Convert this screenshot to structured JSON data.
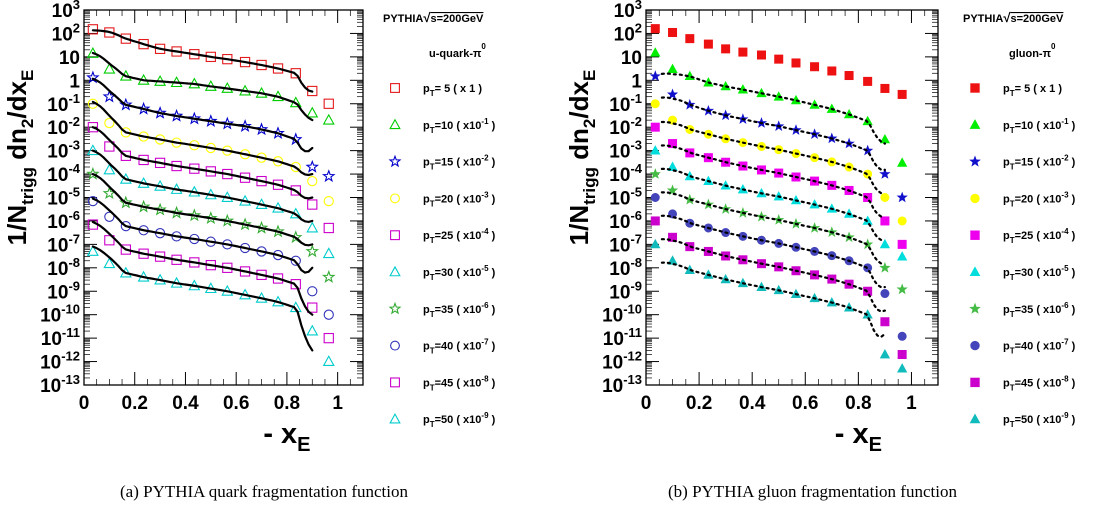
{
  "captions": {
    "a": "(a)  PYTHIA quark fragmentation function",
    "b": "(b)  PYTHIA gluon fragmentation function"
  },
  "panels": {
    "a": {
      "legend_title": "PYTHIA",
      "legend_energy": "s=200GeV",
      "legend_process": "u-quark-π",
      "legend_process_sup": "0"
    },
    "b": {
      "legend_title": "PYTHIA",
      "legend_energy": "s=200GeV",
      "legend_process": "gluon-π",
      "legend_process_sup": "0"
    }
  },
  "chart_data": [
    {
      "type": "scatter",
      "panel": "a",
      "xlabel": "- x_E",
      "ylabel": "1/N_trigg dn_2/dx_E",
      "xlim": [
        0,
        1.1
      ],
      "ylim": [
        1e-13,
        1000
      ],
      "log_y": true,
      "x_ticks": [
        "0",
        "0.2",
        "0.4",
        "0.6",
        "0.8",
        "1"
      ],
      "y_ticks": [
        "10^3",
        "10^2",
        "10",
        "1",
        "10^-1",
        "10^-2",
        "10^-3",
        "10^-4",
        "10^-5",
        "10^-6",
        "10^-7",
        "10^-8",
        "10^-9",
        "10^-10",
        "10^-11",
        "10^-12",
        "10^-13"
      ],
      "x": [
        0.035,
        0.1,
        0.165,
        0.235,
        0.3,
        0.365,
        0.435,
        0.5,
        0.565,
        0.635,
        0.7,
        0.765,
        0.835,
        0.9,
        0.965
      ],
      "marker_fill": "open",
      "legend_position": "right",
      "series": [
        {
          "name": "p_T=5 ( x 1 )",
          "legend": {
            "pt": "5",
            "scale": "( x 1 )"
          },
          "color": "#e41a1c",
          "marker": "square",
          "fit_y0": 130.0,
          "fit_yend": 0.33,
          "values": [
            150.0,
            110.0,
            60.0,
            35.0,
            22.0,
            17.0,
            13.0,
            10.0,
            8.0,
            6.0,
            4.5,
            3.2,
            2.0,
            0.35,
            0.1
          ]
        },
        {
          "name": "p_T=10 ( x10^-1 )",
          "legend": {
            "pt": "10",
            "scale": "( x10^-1 )"
          },
          "color": "#00cc00",
          "marker": "triangle",
          "fit_y0": 15.0,
          "fit_yend": 0.02,
          "values": [
            14.0,
            3.0,
            1.5,
            1.0,
            0.9,
            0.8,
            0.7,
            0.55,
            0.45,
            0.35,
            0.28,
            0.2,
            0.11,
            0.04,
            0.02
          ]
        },
        {
          "name": "p_T=15 ( x10^-2 )",
          "legend": {
            "pt": "15",
            "scale": "( x10^-2 )"
          },
          "color": "#0000cc",
          "marker": "star",
          "fit_y0": 1.1,
          "fit_yend": 0.0013,
          "values": [
            1.3,
            0.2,
            0.09,
            0.06,
            0.04,
            0.03,
            0.023,
            0.018,
            0.014,
            0.011,
            0.008,
            0.0055,
            0.003,
            0.0002,
            8e-05
          ]
        },
        {
          "name": "p_T=20 ( x10^-3 )",
          "legend": {
            "pt": "20",
            "scale": "( x10^-3 )"
          },
          "color": "#ffff00",
          "marker": "circle",
          "fit_y0": 0.13,
          "fit_yend": 0.0001,
          "values": [
            0.1,
            0.015,
            0.006,
            0.004,
            0.003,
            0.0022,
            0.0017,
            0.0013,
            0.001,
            0.0007,
            0.0005,
            0.00035,
            0.0002,
            5e-05,
            7e-06
          ]
        },
        {
          "name": "p_T=25 ( x10^-4 )",
          "legend": {
            "pt": "25",
            "scale": "( x10^-4 )"
          },
          "color": "#cc00cc",
          "marker": "square",
          "fit_y0": 0.01,
          "fit_yend": 1e-05,
          "values": [
            0.01,
            0.0015,
            0.0006,
            0.0004,
            0.0003,
            0.00022,
            0.00017,
            0.00013,
            0.0001,
            7e-05,
            5e-05,
            3.5e-05,
            2e-05,
            5e-06,
            5e-07
          ]
        },
        {
          "name": "p_T=30 ( x10^-5 )",
          "legend": {
            "pt": "30",
            "scale": "( x10^-5 )"
          },
          "color": "#00cccc",
          "marker": "triangle",
          "fit_y0": 0.001,
          "fit_yend": 1e-06,
          "values": [
            0.001,
            0.00015,
            6e-05,
            4e-05,
            3e-05,
            2.2e-05,
            1.7e-05,
            1.3e-05,
            1e-05,
            7e-06,
            5e-06,
            3.5e-06,
            2e-06,
            5e-07,
            4e-08
          ]
        },
        {
          "name": "p_T=35 ( x10^-6 )",
          "legend": {
            "pt": "35",
            "scale": "( x10^-6 )"
          },
          "color": "#33aa33",
          "marker": "star",
          "fit_y0": 0.0001,
          "fit_yend": 1e-07,
          "values": [
            0.0001,
            1.5e-05,
            6e-06,
            4e-06,
            3e-06,
            2.2e-06,
            1.7e-06,
            1.3e-06,
            1e-06,
            7e-07,
            5e-07,
            3.5e-07,
            2e-07,
            5e-08,
            4e-09
          ]
        },
        {
          "name": "p_T=40 ( x10^-7 )",
          "legend": {
            "pt": "40",
            "scale": "( x10^-7 )"
          },
          "color": "#3333bb",
          "marker": "circle",
          "fit_y0": 1e-05,
          "fit_yend": 1e-08,
          "values": [
            7e-06,
            1.5e-06,
            6e-07,
            4e-07,
            3e-07,
            2.2e-07,
            1.7e-07,
            1.3e-07,
            1e-07,
            7e-08,
            5e-08,
            3.5e-08,
            2e-08,
            1e-09,
            1e-10
          ]
        },
        {
          "name": "p_T=45 ( x10^-8 )",
          "legend": {
            "pt": "45",
            "scale": "( x10^-8 )"
          },
          "color": "#cc00cc",
          "marker": "square",
          "fit_y0": 1e-06,
          "fit_yend": 1e-10,
          "values": [
            7e-07,
            1.5e-07,
            6e-08,
            4e-08,
            3e-08,
            2.2e-08,
            1.7e-08,
            1.3e-08,
            1e-08,
            7e-09,
            5e-09,
            3.5e-09,
            2e-09,
            2e-10,
            1e-11
          ]
        },
        {
          "name": "p_T=50 ( x10^-9 )",
          "legend": {
            "pt": "50",
            "scale": "( x10^-9 )"
          },
          "color": "#00cccc",
          "marker": "triangle",
          "fit_y0": 1e-07,
          "fit_yend": 3e-12,
          "values": [
            5e-08,
            1.5e-08,
            6e-09,
            4e-09,
            3e-09,
            2.2e-09,
            1.7e-09,
            1.3e-09,
            1e-09,
            7e-10,
            5e-10,
            3.5e-10,
            2e-10,
            2e-11,
            1e-12
          ]
        }
      ]
    },
    {
      "type": "scatter",
      "panel": "b",
      "xlabel": "- x_E",
      "ylabel": "1/N_trigg dn_2/dx_E",
      "xlim": [
        0,
        1.1
      ],
      "ylim": [
        1e-13,
        1000
      ],
      "log_y": true,
      "x_ticks": [
        "0",
        "0.2",
        "0.4",
        "0.6",
        "0.8",
        "1"
      ],
      "y_ticks": [
        "10^3",
        "10^2",
        "10",
        "1",
        "10^-1",
        "10^-2",
        "10^-3",
        "10^-4",
        "10^-5",
        "10^-6",
        "10^-7",
        "10^-8",
        "10^-9",
        "10^-10",
        "10^-11",
        "10^-12",
        "10^-13"
      ],
      "x": [
        0.035,
        0.1,
        0.165,
        0.235,
        0.3,
        0.365,
        0.435,
        0.5,
        0.565,
        0.635,
        0.7,
        0.765,
        0.835,
        0.9,
        0.965
      ],
      "marker_fill": "filled",
      "legend_position": "right",
      "series": [
        {
          "name": "p_T=5 ( x 1 )",
          "legend": {
            "pt": "5",
            "scale": "( x 1 )"
          },
          "color": "#ee1111",
          "marker": "square",
          "values": [
            160.0,
            110.0,
            60.0,
            35.0,
            22.0,
            16.0,
            12.0,
            8.0,
            5.5,
            3.8,
            2.5,
            1.6,
            0.9,
            0.45,
            0.25
          ]
        },
        {
          "name": "p_T=10 ( x10^-1 )",
          "legend": {
            "pt": "10",
            "scale": "( x10^-1 )"
          },
          "color": "#00ee00",
          "marker": "triangle",
          "fit_y0": 1.0,
          "fit_yend": 0.002,
          "values": [
            15.0,
            3.0,
            1.5,
            0.8,
            0.55,
            0.4,
            0.28,
            0.2,
            0.14,
            0.09,
            0.06,
            0.035,
            0.018,
            0.003,
            0.0003
          ]
        },
        {
          "name": "p_T=15 ( x10^-2 )",
          "legend": {
            "pt": "15",
            "scale": "( x10^-2 )"
          },
          "color": "#1111cc",
          "marker": "star",
          "fit_y0": 0.1,
          "fit_yend": 0.00015,
          "values": [
            1.5,
            0.25,
            0.09,
            0.05,
            0.032,
            0.022,
            0.015,
            0.011,
            0.0075,
            0.005,
            0.0033,
            0.002,
            0.001,
            0.0001,
            1e-05
          ]
        },
        {
          "name": "p_T=20 ( x10^-3 )",
          "legend": {
            "pt": "20",
            "scale": "( x10^-3 )"
          },
          "color": "#ffff00",
          "marker": "circle",
          "fit_y0": 0.01,
          "fit_yend": 1.5e-05,
          "values": [
            0.1,
            0.02,
            0.008,
            0.005,
            0.0032,
            0.0022,
            0.0015,
            0.0011,
            0.00075,
            0.0005,
            0.00033,
            0.0002,
            0.0001,
            1e-05,
            1e-06
          ]
        },
        {
          "name": "p_T=25 ( x10^-4 )",
          "legend": {
            "pt": "25",
            "scale": "( x10^-4 )"
          },
          "color": "#ee00ee",
          "marker": "square",
          "fit_y0": 0.001,
          "fit_yend": 1.5e-06,
          "values": [
            0.01,
            0.002,
            0.0008,
            0.0005,
            0.00032,
            0.00022,
            0.00015,
            0.00011,
            7.5e-05,
            5e-05,
            3.3e-05,
            2e-05,
            1e-05,
            1e-06,
            1e-07
          ]
        },
        {
          "name": "p_T=30 ( x10^-5 )",
          "legend": {
            "pt": "30",
            "scale": "( x10^-5 )"
          },
          "color": "#00dddd",
          "marker": "triangle",
          "fit_y0": 0.0001,
          "fit_yend": 1.5e-07,
          "values": [
            0.001,
            0.0002,
            8e-05,
            5e-05,
            3.2e-05,
            2.2e-05,
            1.5e-05,
            1.1e-05,
            7.5e-06,
            5e-06,
            3.3e-06,
            2e-06,
            1e-06,
            1e-07,
            3e-08
          ]
        },
        {
          "name": "p_T=35 ( x10^-6 )",
          "legend": {
            "pt": "35",
            "scale": "( x10^-6 )"
          },
          "color": "#44bb44",
          "marker": "star",
          "fit_y0": 1e-05,
          "fit_yend": 1.5e-08,
          "values": [
            0.0001,
            2e-05,
            8e-06,
            5e-06,
            3.2e-06,
            2.2e-06,
            1.5e-06,
            1.1e-06,
            7.5e-07,
            5e-07,
            3.3e-07,
            2e-07,
            1e-07,
            1e-08,
            1.2e-09
          ]
        },
        {
          "name": "p_T=40 ( x10^-7 )",
          "legend": {
            "pt": "40",
            "scale": "( x10^-7 )"
          },
          "color": "#4444bb",
          "marker": "circle",
          "fit_y0": 1e-06,
          "fit_yend": 1.5e-09,
          "values": [
            1e-05,
            2e-06,
            8e-07,
            5e-07,
            3.2e-07,
            2.2e-07,
            1.5e-07,
            1.1e-07,
            7.5e-08,
            5e-08,
            3.3e-08,
            2e-08,
            1e-08,
            8e-10,
            1.2e-11
          ]
        },
        {
          "name": "p_T=45 ( x10^-8 )",
          "legend": {
            "pt": "45",
            "scale": "( x10^-8 )"
          },
          "color": "#cc00cc",
          "marker": "square",
          "fit_y0": 1e-07,
          "fit_yend": 1.5e-10,
          "values": [
            1e-06,
            2e-07,
            8e-08,
            5e-08,
            3.2e-08,
            2.2e-08,
            1.5e-08,
            1.1e-08,
            7.5e-09,
            5e-09,
            3.3e-09,
            2e-09,
            1e-09,
            5e-11,
            2e-12
          ]
        },
        {
          "name": "p_T=50 ( x10^-9 )",
          "legend": {
            "pt": "50",
            "scale": "( x10^-9 )"
          },
          "color": "#11bbbb",
          "marker": "triangle",
          "fit_y0": 1e-08,
          "fit_yend": 1.5e-11,
          "values": [
            1e-07,
            2e-08,
            8e-09,
            5e-09,
            3.2e-09,
            2.2e-09,
            1.5e-09,
            1.1e-09,
            7.5e-10,
            5e-10,
            3.3e-10,
            2e-10,
            1e-10,
            2e-12,
            5e-13
          ]
        }
      ]
    }
  ]
}
